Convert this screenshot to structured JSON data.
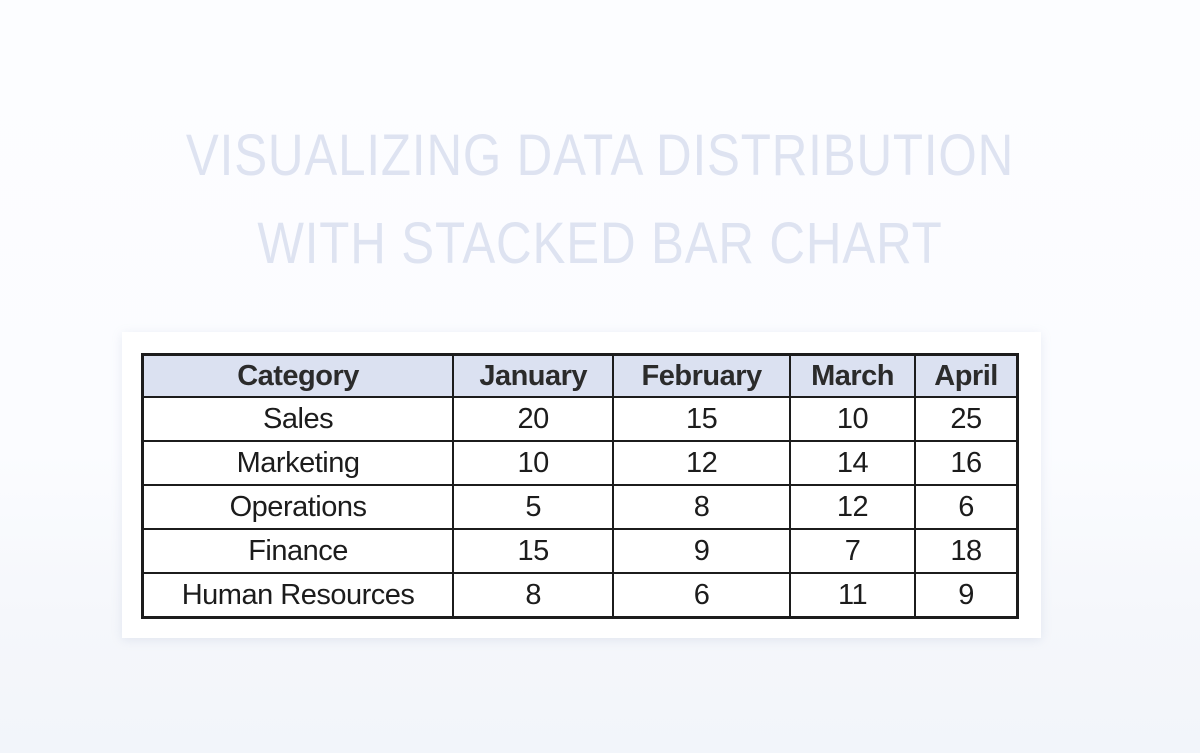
{
  "title": {
    "line1": "VISUALIZING DATA DISTRIBUTION",
    "line2": "WITH STACKED BAR CHART"
  },
  "table": {
    "columns": [
      "Category",
      "January",
      "February",
      "March",
      "April"
    ],
    "rows": [
      {
        "category": "Sales",
        "values": [
          20,
          15,
          10,
          25
        ]
      },
      {
        "category": "Marketing",
        "values": [
          10,
          12,
          14,
          16
        ]
      },
      {
        "category": "Operations",
        "values": [
          5,
          8,
          12,
          6
        ]
      },
      {
        "category": "Finance",
        "values": [
          15,
          9,
          7,
          18
        ]
      },
      {
        "category": "Human Resources",
        "values": [
          8,
          6,
          11,
          9
        ]
      }
    ]
  },
  "colors": {
    "header_background": "#dbe1f1",
    "table_border": "#1c1c1c",
    "title_text": "#dee3f1",
    "card_background": "#ffffff",
    "page_background_bottom": "#f2f5fa"
  },
  "chart_data": {
    "type": "table",
    "title": "VISUALIZING DATA DISTRIBUTION WITH STACKED BAR CHART",
    "columns": [
      "Category",
      "January",
      "February",
      "March",
      "April"
    ],
    "categories": [
      "January",
      "February",
      "March",
      "April"
    ],
    "series": [
      {
        "name": "Sales",
        "values": [
          20,
          15,
          10,
          25
        ]
      },
      {
        "name": "Marketing",
        "values": [
          10,
          12,
          14,
          16
        ]
      },
      {
        "name": "Operations",
        "values": [
          5,
          8,
          12,
          6
        ]
      },
      {
        "name": "Finance",
        "values": [
          15,
          9,
          7,
          18
        ]
      },
      {
        "name": "Human Resources",
        "values": [
          8,
          6,
          11,
          9
        ]
      }
    ]
  }
}
